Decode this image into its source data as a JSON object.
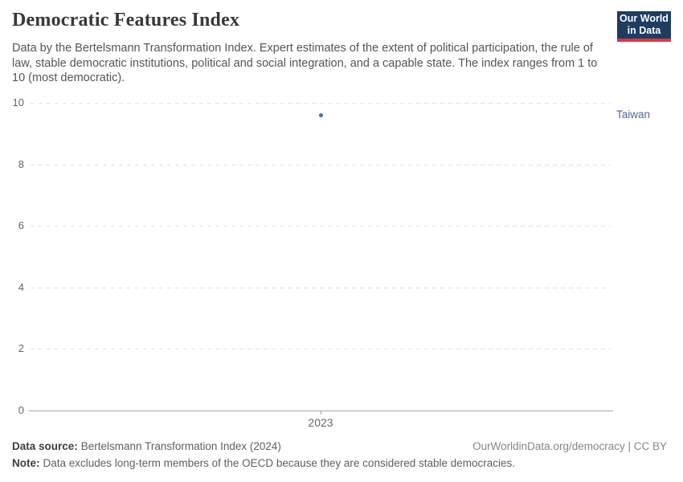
{
  "header": {
    "title": "Democratic Features Index",
    "subtitle": "Data by the Bertelsmann Transformation Index. Expert estimates of the extent of political participation, the rule of law, stable democratic institutions, political and social integration, and a capable state. The index ranges from 1 to 10 (most democratic).",
    "logo": {
      "line1": "Our World",
      "line2": "in Data"
    }
  },
  "chart_data": {
    "type": "scatter",
    "title": "Democratic Features Index",
    "x": [
      2023
    ],
    "x_tick_labels": [
      "2023"
    ],
    "y_ticks": [
      0,
      2,
      4,
      6,
      8,
      10
    ],
    "ylim": [
      0,
      10
    ],
    "grid": "horizontal-dashed",
    "legend_position": "right-of-point",
    "series": [
      {
        "name": "Taiwan",
        "x": [
          2023
        ],
        "values": [
          9.6
        ],
        "color": "#4c6a9c"
      }
    ]
  },
  "colors": {
    "accent_blue": "#4c6a9c",
    "logo_navy": "#1d3d63",
    "logo_red": "#e0373d",
    "grid_gray": "#e2e2e2",
    "axis_gray": "#a5a5a5"
  },
  "footer": {
    "source_label": "Data source:",
    "source_text": "Bertelsmann Transformation Index (2024)",
    "attribution": "OurWorldinData.org/democracy | CC BY",
    "note_label": "Note:",
    "note_text": "Data excludes long-term members of the OECD because they are considered stable democracies."
  }
}
